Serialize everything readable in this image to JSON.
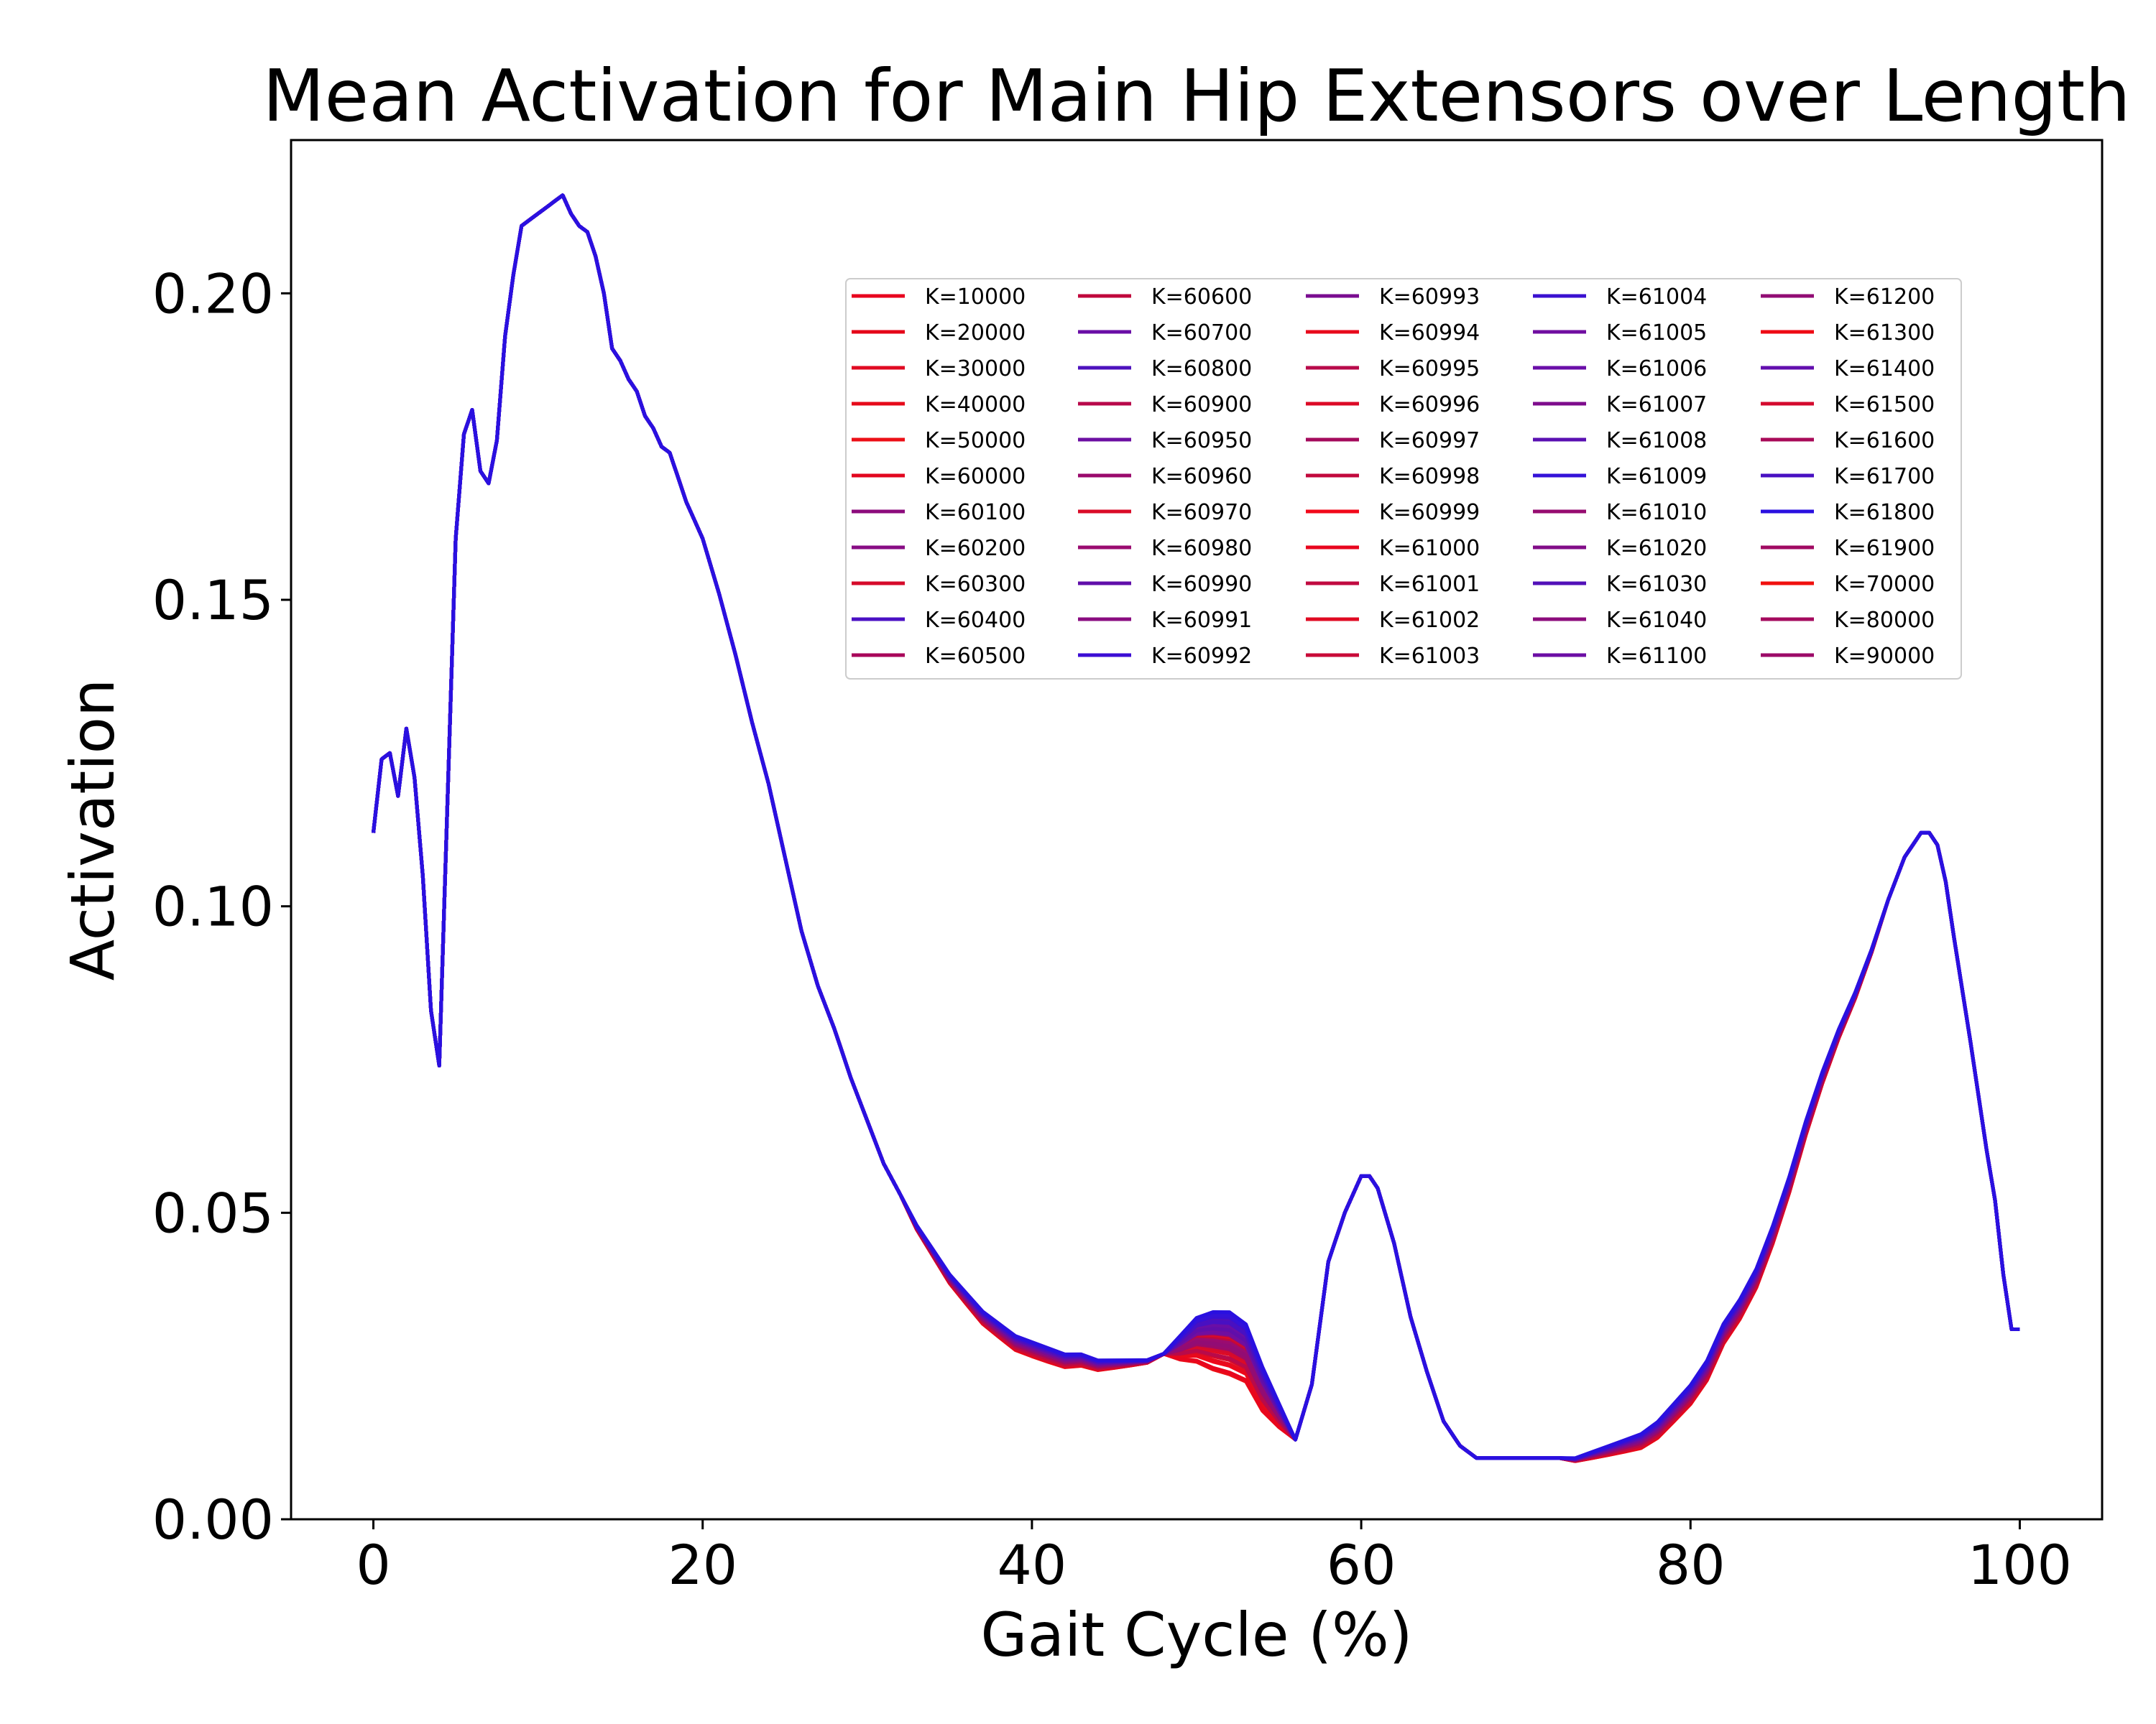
{
  "chart_data": {
    "type": "line",
    "title": "Mean Activation for Main Hip Extensors over Length",
    "xlabel": "Gait Cycle (%)",
    "ylabel": "Activation",
    "xlim": [
      -5,
      105
    ],
    "ylim": [
      0,
      0.225
    ],
    "xticks": [
      0,
      20,
      40,
      60,
      80,
      100
    ],
    "xtick_labels": [
      "0",
      "20",
      "40",
      "60",
      "80",
      "100"
    ],
    "yticks": [
      0,
      0.05,
      0.1,
      0.15,
      0.2
    ],
    "ytick_labels": [
      "0.00",
      "0.05",
      "0.10",
      "0.15",
      "0.20"
    ],
    "grid": false,
    "legend": {
      "placement": "upper-right",
      "columns": 5
    },
    "base_curve": {
      "x": [
        0,
        0.5,
        1,
        1.5,
        2,
        2.5,
        3,
        3.5,
        4,
        5,
        5.5,
        6,
        6.5,
        7,
        7.5,
        8,
        8.5,
        9,
        9.5,
        10,
        10.5,
        11,
        11.5,
        12,
        12.5,
        13,
        13.5,
        14,
        14.5,
        15,
        15.5,
        16,
        16.5,
        17,
        17.5,
        18,
        18.5,
        19,
        19.5,
        20,
        21,
        22,
        23,
        24,
        25,
        26,
        27,
        28,
        29,
        30,
        31,
        32,
        33,
        34,
        35,
        36,
        37,
        38,
        39,
        40,
        41,
        42,
        43,
        44,
        45,
        46,
        47,
        48,
        49,
        50,
        51,
        52,
        53,
        54,
        55,
        56,
        57,
        58,
        59,
        60,
        60.5,
        61,
        62,
        63,
        64,
        65,
        66,
        67,
        68,
        69,
        70,
        71,
        72,
        73,
        74,
        75,
        76,
        77,
        78,
        79,
        80,
        81,
        82,
        83,
        84,
        85,
        86,
        87,
        88,
        89,
        90,
        91,
        92,
        93,
        94,
        94.5,
        95,
        95.5,
        96,
        97,
        98,
        98.5,
        99,
        99.5,
        100
      ],
      "y": [
        0.112,
        0.124,
        0.125,
        0.118,
        0.129,
        0.121,
        0.105,
        0.083,
        0.074,
        0.16,
        0.177,
        0.181,
        0.171,
        0.169,
        0.176,
        0.193,
        0.203,
        0.211,
        0.212,
        0.213,
        0.214,
        0.215,
        0.216,
        0.213,
        0.211,
        0.21,
        0.206,
        0.2,
        0.191,
        0.189,
        0.186,
        0.184,
        0.18,
        0.178,
        0.175,
        0.174,
        0.17,
        0.166,
        0.163,
        0.16,
        0.151,
        0.141,
        0.13,
        0.12,
        0.108,
        0.096,
        0.087,
        0.08,
        0.072,
        0.065,
        0.058,
        0.053,
        0.048,
        0.044,
        0.04,
        0.037,
        0.034,
        0.032,
        0.03,
        0.029,
        0.028,
        0.027,
        0.027,
        0.026,
        0.026,
        0.026,
        0.026,
        0.027,
        0.03,
        0.033,
        0.034,
        0.034,
        0.032,
        0.025,
        0.019,
        0.013,
        0.022,
        0.042,
        0.05,
        0.056,
        0.056,
        0.054,
        0.045,
        0.033,
        0.024,
        0.016,
        0.012,
        0.01,
        0.01,
        0.01,
        0.01,
        0.01,
        0.01,
        0.01,
        0.011,
        0.012,
        0.013,
        0.014,
        0.016,
        0.019,
        0.022,
        0.026,
        0.032,
        0.036,
        0.041,
        0.048,
        0.056,
        0.065,
        0.073,
        0.08,
        0.086,
        0.093,
        0.101,
        0.108,
        0.112,
        0.112,
        0.11,
        0.104,
        0.095,
        0.078,
        0.06,
        0.052,
        0.04,
        0.031,
        0.031
      ]
    },
    "variation": {
      "description_free": true,
      "dip_region": [
        33,
        56
      ],
      "rise_region": [
        72,
        92
      ]
    },
    "series": [
      {
        "name": "K=10000",
        "color": "#e8001e"
      },
      {
        "name": "K=20000",
        "color": "#e50418"
      },
      {
        "name": "K=30000",
        "color": "#e00a22"
      },
      {
        "name": "K=40000",
        "color": "#e60a1a"
      },
      {
        "name": "K=50000",
        "color": "#ec0f16"
      },
      {
        "name": "K=60000",
        "color": "#e2061f"
      },
      {
        "name": "K=60100",
        "color": "#8c0b7c"
      },
      {
        "name": "K=60200",
        "color": "#880d84"
      },
      {
        "name": "K=60300",
        "color": "#d60a2a"
      },
      {
        "name": "K=60400",
        "color": "#4a10c4"
      },
      {
        "name": "K=60500",
        "color": "#a8065a"
      },
      {
        "name": "K=60600",
        "color": "#c0083c"
      },
      {
        "name": "K=60700",
        "color": "#6a0ea6"
      },
      {
        "name": "K=60800",
        "color": "#4d12bd"
      },
      {
        "name": "K=60900",
        "color": "#b8084a"
      },
      {
        "name": "K=60950",
        "color": "#6c0fa2"
      },
      {
        "name": "K=60960",
        "color": "#9a0a6c"
      },
      {
        "name": "K=60970",
        "color": "#da0c28"
      },
      {
        "name": "K=60980",
        "color": "#9a0b70"
      },
      {
        "name": "K=60990",
        "color": "#600eaa"
      },
      {
        "name": "K=60991",
        "color": "#8a0c80"
      },
      {
        "name": "K=60992",
        "color": "#3c0ed4"
      },
      {
        "name": "K=60993",
        "color": "#7a0c90"
      },
      {
        "name": "K=60994",
        "color": "#e80a1c"
      },
      {
        "name": "K=60995",
        "color": "#b80a4a"
      },
      {
        "name": "K=60996",
        "color": "#dc0a26"
      },
      {
        "name": "K=60997",
        "color": "#a40a5c"
      },
      {
        "name": "K=60998",
        "color": "#c2083c"
      },
      {
        "name": "K=60999",
        "color": "#f2081a"
      },
      {
        "name": "K=61000",
        "color": "#e8061e"
      },
      {
        "name": "K=61001",
        "color": "#c00a40"
      },
      {
        "name": "K=61002",
        "color": "#e00a22"
      },
      {
        "name": "K=61003",
        "color": "#c80a38"
      },
      {
        "name": "K=61004",
        "color": "#3a10d0"
      },
      {
        "name": "K=61005",
        "color": "#700ea0"
      },
      {
        "name": "K=61006",
        "color": "#6a0ea8"
      },
      {
        "name": "K=61007",
        "color": "#7e0c8c"
      },
      {
        "name": "K=61008",
        "color": "#5a10b2"
      },
      {
        "name": "K=61009",
        "color": "#3412d8"
      },
      {
        "name": "K=61010",
        "color": "#960c70"
      },
      {
        "name": "K=61020",
        "color": "#820c88"
      },
      {
        "name": "K=61030",
        "color": "#5210b8"
      },
      {
        "name": "K=61040",
        "color": "#8c0c7c"
      },
      {
        "name": "K=61100",
        "color": "#6c0ea4"
      },
      {
        "name": "K=61200",
        "color": "#920c74"
      },
      {
        "name": "K=61300",
        "color": "#ee0a14"
      },
      {
        "name": "K=61400",
        "color": "#620eae"
      },
      {
        "name": "K=61500",
        "color": "#d40a2e"
      },
      {
        "name": "K=61600",
        "color": "#a80a58"
      },
      {
        "name": "K=61700",
        "color": "#4810c2"
      },
      {
        "name": "K=61800",
        "color": "#2a10e0"
      },
      {
        "name": "K=61900",
        "color": "#a00a62"
      },
      {
        "name": "K=70000",
        "color": "#f0100e"
      },
      {
        "name": "K=80000",
        "color": "#a40a5e"
      },
      {
        "name": "K=90000",
        "color": "#9c0a68"
      }
    ]
  }
}
